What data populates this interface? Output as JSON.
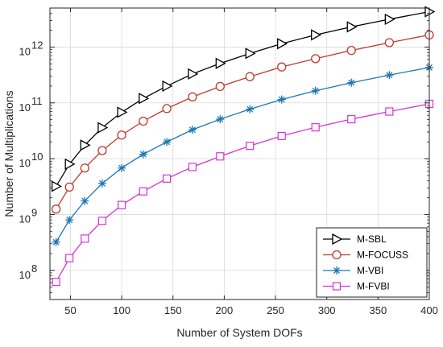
{
  "chart_data": {
    "type": "line",
    "xlabel": "Number of System DOFs",
    "ylabel": "Number of Multiplications",
    "xlim": [
      30,
      400
    ],
    "ylim": [
      30000000.0,
      5000000000000.0
    ],
    "y_scale": "log",
    "grid": true,
    "legend_placement": "bottom-right",
    "x_ticks": [
      50,
      100,
      150,
      200,
      250,
      300,
      350,
      400
    ],
    "y_ticks": [
      {
        "value": 100000000.0,
        "base": "10",
        "exp": "8"
      },
      {
        "value": 1000000000.0,
        "base": "10",
        "exp": "9"
      },
      {
        "value": 10000000000.0,
        "base": "10",
        "exp": "10"
      },
      {
        "value": 100000000000.0,
        "base": "10",
        "exp": "11"
      },
      {
        "value": 1000000000000.0,
        "base": "10",
        "exp": "12"
      }
    ],
    "x": [
      36,
      49,
      64,
      81,
      100,
      121,
      144,
      169,
      196,
      225,
      256,
      289,
      324,
      361,
      400
    ],
    "series": [
      {
        "name": "M-SBL",
        "color": "#000000",
        "marker": "triangle-right",
        "values": [
          3200000000.0,
          8000000000.0,
          17500000000.0,
          36000000000.0,
          68000000000.0,
          120000000000.0,
          200000000000.0,
          330000000000.0,
          510000000000.0,
          770000000000.0,
          1150000000000.0,
          1650000000000.0,
          2300000000000.0,
          3150000000000.0,
          4300000000000.0
        ]
      },
      {
        "name": "M-FOCUSS",
        "color": "#c0392b",
        "marker": "circle",
        "values": [
          1250000000.0,
          3100000000.0,
          6800000000.0,
          14000000000.0,
          26500000000.0,
          47000000000.0,
          79000000000.0,
          128000000000.0,
          197000000000.0,
          295000000000.0,
          440000000000.0,
          620000000000.0,
          870000000000.0,
          1200000000000.0,
          1650000000000.0
        ]
      },
      {
        "name": "M-VBI",
        "color": "#1f77b4",
        "marker": "asterisk",
        "values": [
          320000000.0,
          800000000.0,
          1750000000.0,
          3600000000.0,
          6800000000.0,
          12000000000.0,
          20000000000.0,
          33000000000.0,
          51000000000.0,
          77000000000.0,
          115000000000.0,
          165000000000.0,
          230000000000.0,
          315000000000.0,
          430000000000.0
        ]
      },
      {
        "name": "M-FVBI",
        "color": "#d633d6",
        "marker": "square",
        "values": [
          62000000.0,
          165000000.0,
          370000000.0,
          770000000.0,
          1480000000.0,
          2600000000.0,
          4400000000.0,
          7100000000.0,
          11000000000.0,
          17000000000.0,
          25500000000.0,
          36500000000.0,
          51000000000.0,
          70000000000.0,
          96000000000.0
        ]
      }
    ]
  }
}
